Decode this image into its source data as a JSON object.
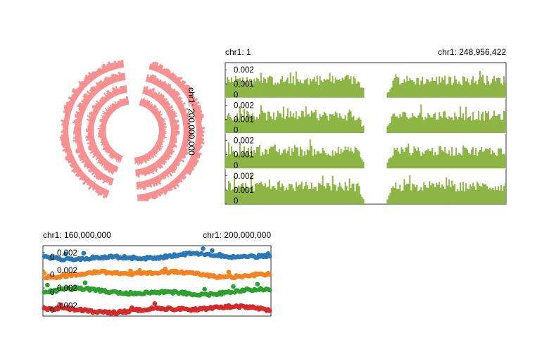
{
  "colors": {
    "circular": "#f79090",
    "linear_bars": "#8db545",
    "scatter_series": [
      "#2a79b6",
      "#f58220",
      "#2ca12f",
      "#d62a28"
    ]
  },
  "chart_data": [
    {
      "type": "area",
      "name": "circular-genome-plot",
      "tracks": 4,
      "position_label": "chr1: 200,000,000",
      "layout": "circular",
      "gap_region": "centromere"
    },
    {
      "type": "bar",
      "name": "linear-genome-plot",
      "start_label": "chr1: 1",
      "end_label": "chr1: 248,956,422",
      "x_range": [
        1,
        248956422
      ],
      "tracks": 4,
      "y_range": [
        0,
        0.0025
      ],
      "y_ticks": [
        {
          "value": 0,
          "label": "0"
        },
        {
          "value": 0.001,
          "label": "0.001"
        },
        {
          "value": 0.002,
          "label": "0.002"
        }
      ],
      "gap": [
        123400000,
        143200000
      ]
    },
    {
      "type": "scatter",
      "name": "region-scatter-plot",
      "start_label": "chr1: 160,000,000",
      "end_label": "chr1: 200,000,000",
      "x_range": [
        160000000,
        200000000
      ],
      "tracks": 4,
      "y_tick_labels": [
        "0.002",
        "0"
      ]
    }
  ]
}
